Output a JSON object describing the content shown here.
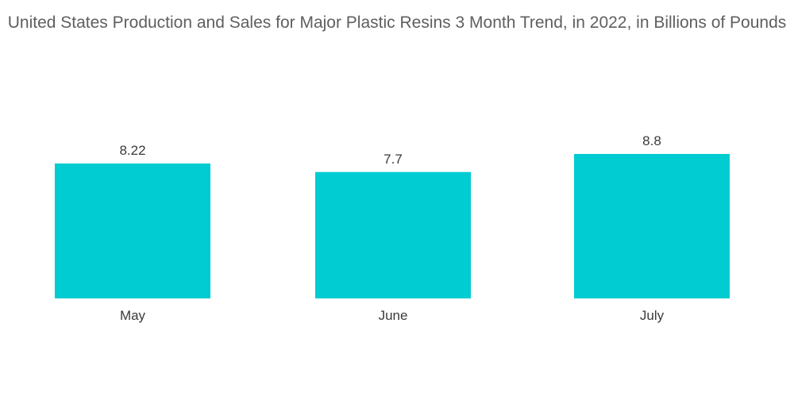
{
  "chart_data": {
    "type": "bar",
    "title": "United States Production and Sales for Major Plastic Resins 3 Month Trend, in 2022, in Billions of Pounds",
    "categories": [
      "May",
      "June",
      "July"
    ],
    "values": [
      8.22,
      7.7,
      8.8
    ],
    "data_labels": [
      "8.22",
      "7.7",
      "8.8"
    ],
    "bar_color": "#00ccd1",
    "ylim": [
      0,
      8.8
    ],
    "grid": false,
    "legend": "none"
  }
}
